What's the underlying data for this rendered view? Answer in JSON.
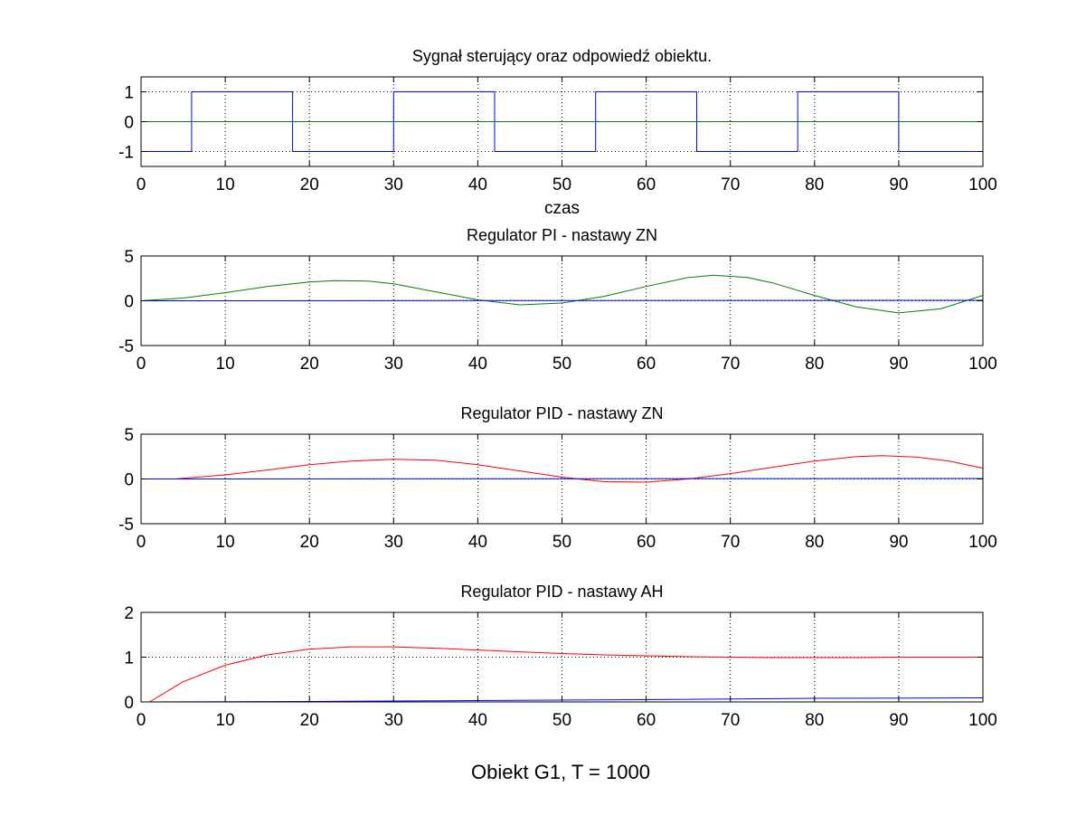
{
  "figure": {
    "suptitle": "Obiekt G1, T = 1000"
  },
  "chart_data": [
    {
      "type": "line",
      "title": "Sygnał sterujący oraz odpowiedź obiektu.",
      "xlabel": "czas",
      "ylabel": "",
      "xlim": [
        0,
        100
      ],
      "ylim": [
        -1.5,
        1.5
      ],
      "xticks": [
        0,
        10,
        20,
        30,
        40,
        50,
        60,
        70,
        80,
        90,
        100
      ],
      "yticks": [
        -1,
        0,
        1
      ],
      "grid": true,
      "series": [
        {
          "color": "#0000ff",
          "step": true,
          "x": [
            0,
            6,
            6,
            18,
            18,
            30,
            30,
            42,
            42,
            54,
            54,
            66,
            66,
            78,
            78,
            90,
            90,
            100
          ],
          "y": [
            -1,
            -1,
            1,
            1,
            -1,
            -1,
            1,
            1,
            -1,
            -1,
            1,
            1,
            -1,
            -1,
            1,
            1,
            -1,
            -1
          ]
        },
        {
          "color": "#008000",
          "x": [
            0,
            100
          ],
          "y": [
            0,
            0
          ]
        }
      ]
    },
    {
      "type": "line",
      "title": "Regulator PI - nastawy ZN",
      "xlabel": "",
      "ylabel": "",
      "xlim": [
        0,
        100
      ],
      "ylim": [
        -5,
        5
      ],
      "xticks": [
        0,
        10,
        20,
        30,
        40,
        50,
        60,
        70,
        80,
        90,
        100
      ],
      "yticks": [
        -5,
        0,
        5
      ],
      "grid": true,
      "series": [
        {
          "color": "#008000",
          "x": [
            0,
            5,
            10,
            15,
            20,
            23,
            27,
            30,
            35,
            40,
            45,
            50,
            55,
            60,
            65,
            68,
            72,
            75,
            80,
            85,
            90,
            95,
            100
          ],
          "y": [
            0,
            0.3,
            0.9,
            1.6,
            2.1,
            2.25,
            2.2,
            1.9,
            1.0,
            0.1,
            -0.45,
            -0.25,
            0.5,
            1.6,
            2.6,
            2.85,
            2.6,
            2.0,
            0.6,
            -0.7,
            -1.35,
            -0.9,
            0.6
          ]
        },
        {
          "color": "#0000ff",
          "x": [
            0,
            100
          ],
          "y": [
            0,
            0.05
          ]
        }
      ]
    },
    {
      "type": "line",
      "title": "Regulator PID - nastawy ZN",
      "xlabel": "",
      "ylabel": "",
      "xlim": [
        0,
        100
      ],
      "ylim": [
        -5,
        5
      ],
      "xticks": [
        0,
        10,
        20,
        30,
        40,
        50,
        60,
        70,
        80,
        90,
        100
      ],
      "yticks": [
        -5,
        0,
        5
      ],
      "grid": true,
      "series": [
        {
          "color": "#ff0000",
          "x": [
            4,
            10,
            15,
            20,
            25,
            30,
            35,
            40,
            45,
            50,
            55,
            60,
            65,
            70,
            75,
            80,
            85,
            88,
            92,
            96,
            100
          ],
          "y": [
            0,
            0.45,
            1.0,
            1.6,
            2.0,
            2.2,
            2.1,
            1.6,
            0.9,
            0.2,
            -0.3,
            -0.35,
            0.0,
            0.6,
            1.3,
            2.0,
            2.5,
            2.6,
            2.45,
            2.0,
            1.2
          ]
        },
        {
          "color": "#0000ff",
          "x": [
            0,
            100
          ],
          "y": [
            0,
            0.05
          ]
        }
      ]
    },
    {
      "type": "line",
      "title": "Regulator PID - nastawy AH",
      "xlabel": "",
      "ylabel": "",
      "xlim": [
        0,
        100
      ],
      "ylim": [
        0,
        2
      ],
      "xticks": [
        0,
        10,
        20,
        30,
        40,
        50,
        60,
        70,
        80,
        90,
        100
      ],
      "yticks": [
        0,
        1,
        2
      ],
      "grid": true,
      "series": [
        {
          "color": "#ff0000",
          "x": [
            1,
            5,
            10,
            15,
            20,
            25,
            30,
            35,
            40,
            45,
            50,
            55,
            60,
            65,
            70,
            75,
            80,
            85,
            90,
            95,
            100
          ],
          "y": [
            0,
            0.45,
            0.82,
            1.05,
            1.18,
            1.23,
            1.23,
            1.2,
            1.16,
            1.12,
            1.08,
            1.05,
            1.03,
            1.01,
            1.0,
            0.99,
            0.99,
            0.99,
            1.0,
            1.0,
            1.0
          ]
        },
        {
          "color": "#0000ff",
          "x": [
            0,
            20,
            40,
            60,
            80,
            100
          ],
          "y": [
            0,
            0.01,
            0.03,
            0.05,
            0.08,
            0.09
          ]
        }
      ]
    }
  ]
}
